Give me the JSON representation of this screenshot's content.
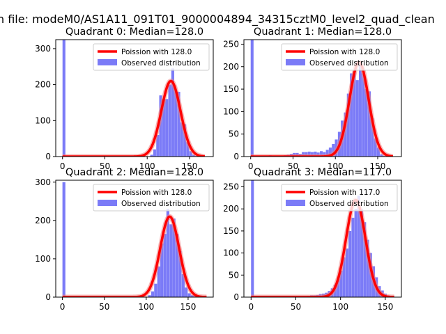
{
  "figure": {
    "suptitle": "n file: modeM0/AS1A11_091T01_9000004894_34315cztM0_level2_quad_clean"
  },
  "colors": {
    "histogram": "#7b7bf7",
    "poisson_line": "#ff0000",
    "poisson_line_fill": "#f08080",
    "axes": "#000000",
    "background": "#ffffff"
  },
  "chart_data": [
    {
      "type": "bar",
      "panel": "top-left",
      "title": "Quadrant 0: Median=128.0",
      "xlabel": "",
      "ylabel": "",
      "xlim": [
        -8,
        178
      ],
      "ylim": [
        0,
        325
      ],
      "xticks": [
        0,
        50,
        100,
        150
      ],
      "xtick_labels": [
        "0",
        "50",
        "100",
        "150"
      ],
      "yticks": [
        0,
        100,
        200,
        300
      ],
      "ytick_labels": [
        "0",
        "100",
        "200",
        "300"
      ],
      "legend": {
        "location": "top-right",
        "entries": [
          "Poission with 128.0",
          "Observed distribution"
        ]
      },
      "bin_width": 3.55,
      "series": [
        {
          "name": "Observed distribution",
          "kind": "hist",
          "bin_left": [
            0,
            103.6,
            107.1,
            110.7,
            114.2,
            117.8,
            121.3,
            124.9,
            128.5,
            132.0,
            135.6,
            139.1,
            142.7,
            146.2,
            149.8,
            153.4,
            156.9
          ],
          "counts": [
            330,
            5,
            20,
            60,
            170,
            160,
            160,
            200,
            245,
            185,
            180,
            95,
            90,
            40,
            15,
            5,
            2
          ]
        },
        {
          "name": "Poission with 128.0",
          "kind": "line",
          "mean": 128,
          "x_range": [
            0,
            168
          ],
          "peak": 210
        }
      ]
    },
    {
      "type": "bar",
      "panel": "top-right",
      "title": "Quadrant 1: Median=128.0",
      "xlabel": "",
      "ylabel": "",
      "xlim": [
        -8,
        178
      ],
      "ylim": [
        0,
        260
      ],
      "xticks": [
        0,
        50,
        100,
        150
      ],
      "xtick_labels": [
        "0",
        "50",
        "100",
        "150"
      ],
      "yticks": [
        0,
        50,
        100,
        150,
        200,
        250
      ],
      "ytick_labels": [
        "0",
        "50",
        "100",
        "150",
        "200",
        "250"
      ],
      "legend": {
        "location": "top-right",
        "entries": [
          "Poission with 128.0",
          "Observed distribution"
        ]
      },
      "bin_width": 3.55,
      "series": [
        {
          "name": "Observed distribution",
          "kind": "hist",
          "bin_left": [
            0,
            21.3,
            39.1,
            42.6,
            46.2,
            49.7,
            53.3,
            56.8,
            60.4,
            63.9,
            67.5,
            71.0,
            74.6,
            78.1,
            81.7,
            85.2,
            88.8,
            92.3,
            95.9,
            99.4,
            103.0,
            106.5,
            110.1,
            113.6,
            117.2,
            120.7,
            124.3,
            127.8,
            131.4,
            134.9,
            138.5,
            142.0,
            145.6,
            149.1,
            152.7,
            156.2
          ],
          "counts": [
            260,
            3,
            3,
            4,
            6,
            8,
            8,
            6,
            10,
            10,
            11,
            10,
            11,
            9,
            12,
            10,
            15,
            20,
            28,
            38,
            55,
            80,
            98,
            140,
            185,
            190,
            170,
            205,
            185,
            150,
            145,
            85,
            40,
            20,
            5,
            2
          ]
        },
        {
          "name": "Poission with 128.0",
          "kind": "line",
          "mean": 128,
          "x_range": [
            0,
            168
          ],
          "peak": 210
        }
      ]
    },
    {
      "type": "bar",
      "panel": "bottom-left",
      "title": "Quadrant 2: Median=128.0",
      "xlabel": "",
      "ylabel": "",
      "xlim": [
        -8,
        180
      ],
      "ylim": [
        0,
        305
      ],
      "xticks": [
        0,
        50,
        100,
        150
      ],
      "xtick_labels": [
        "0",
        "50",
        "100",
        "150"
      ],
      "yticks": [
        0,
        100,
        200,
        300
      ],
      "ytick_labels": [
        "0",
        "100",
        "200",
        "300"
      ],
      "legend": {
        "location": "top-right",
        "entries": [
          "Poission with 128.0",
          "Observed distribution"
        ]
      },
      "bin_width": 3.65,
      "series": [
        {
          "name": "Observed distribution",
          "kind": "hist",
          "bin_left": [
            0,
            54.8,
            102.2,
            105.9,
            109.5,
            113.2,
            116.8,
            120.5,
            124.1,
            127.8,
            131.4,
            135.1,
            138.7,
            142.4,
            146.0,
            149.7,
            153.3,
            157.0
          ],
          "counts": [
            300,
            2,
            5,
            15,
            35,
            80,
            140,
            165,
            230,
            190,
            205,
            165,
            120,
            60,
            25,
            10,
            5,
            2
          ]
        },
        {
          "name": "Poission with 128.0",
          "kind": "line",
          "mean": 128,
          "x_range": [
            0,
            172
          ],
          "peak": 210
        }
      ]
    },
    {
      "type": "bar",
      "panel": "bottom-right",
      "title": "Quadrant 3: Median=117.0",
      "xlabel": "",
      "ylabel": "",
      "xlim": [
        -8,
        168
      ],
      "ylim": [
        0,
        265
      ],
      "xticks": [
        0,
        50,
        100,
        150
      ],
      "xtick_labels": [
        "0",
        "50",
        "100",
        "150"
      ],
      "yticks": [
        0,
        50,
        100,
        150,
        200,
        250
      ],
      "ytick_labels": [
        "0",
        "50",
        "100",
        "150",
        "200",
        "250"
      ],
      "legend": {
        "location": "top-right",
        "entries": [
          "Poission with 117.0",
          "Observed distribution"
        ]
      },
      "bin_width": 3.3,
      "series": [
        {
          "name": "Observed distribution",
          "kind": "hist",
          "bin_left": [
            0,
            59.4,
            62.7,
            66.0,
            69.3,
            72.6,
            75.9,
            79.2,
            82.5,
            85.8,
            89.1,
            92.4,
            95.7,
            99.0,
            102.3,
            105.6,
            108.9,
            112.2,
            115.5,
            118.8,
            122.1,
            125.4,
            128.7,
            132.0,
            135.3,
            138.6,
            141.9,
            145.2,
            148.5,
            151.8,
            155.1
          ],
          "counts": [
            265,
            2,
            3,
            4,
            4,
            5,
            7,
            8,
            10,
            14,
            20,
            28,
            42,
            60,
            90,
            110,
            150,
            180,
            200,
            230,
            200,
            170,
            130,
            100,
            70,
            45,
            25,
            15,
            8,
            4,
            2
          ]
        },
        {
          "name": "Poission with 117.0",
          "kind": "line",
          "mean": 117,
          "x_range": [
            0,
            160
          ],
          "peak": 220
        }
      ]
    }
  ]
}
